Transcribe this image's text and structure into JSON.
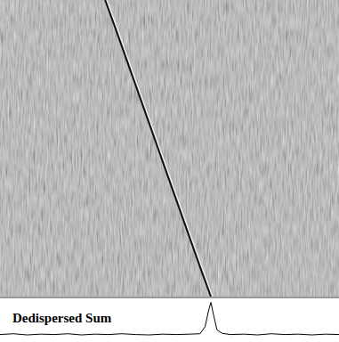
{
  "chart_data": [
    {
      "type": "waterfall",
      "x": [
        31,
        34.2,
        37.3,
        40.4,
        43.5,
        46.6,
        49.7,
        52.8,
        55.9,
        59.0,
        62.2
      ],
      "values": [
        100,
        90,
        80,
        70,
        60,
        50,
        40,
        30,
        20,
        10,
        0
      ],
      "xlim": [
        0,
        100
      ],
      "ylim": [
        0,
        100
      ],
      "color": "#111111",
      "tick_labels": false
    },
    {
      "type": "line",
      "title": "Dedispersed Sum",
      "x": [
        0,
        4,
        8,
        12,
        16,
        20,
        24,
        28,
        32,
        36,
        40,
        44,
        48,
        52,
        56,
        59,
        60.5,
        61.5,
        62.2,
        63,
        64,
        65.5,
        68,
        72,
        76,
        80,
        84,
        88,
        92,
        96,
        100
      ],
      "values": [
        10,
        12,
        9,
        11,
        10,
        12,
        9,
        11,
        10,
        12,
        10,
        9,
        11,
        10,
        11,
        12,
        30,
        70,
        92,
        60,
        22,
        13,
        10,
        11,
        9,
        12,
        10,
        11,
        9,
        11,
        10
      ],
      "xlim": [
        0,
        100
      ],
      "ylim": [
        0,
        100
      ],
      "color": "#000000",
      "tick_labels": false
    }
  ]
}
